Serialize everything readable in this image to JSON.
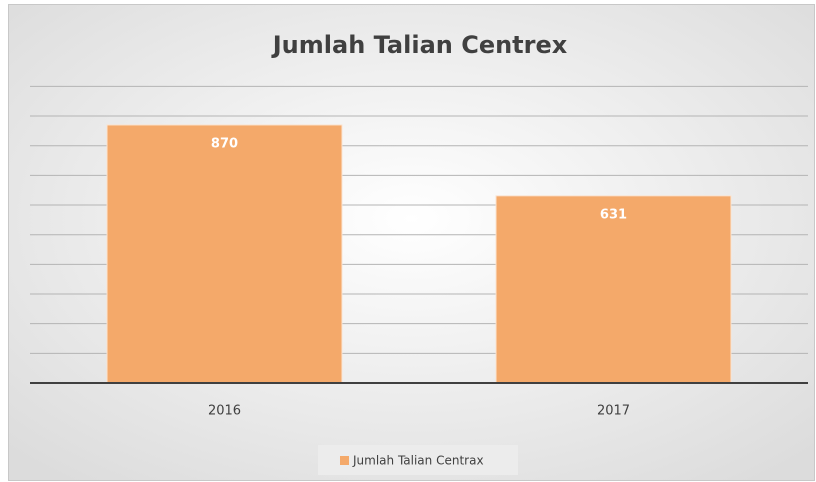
{
  "chart_data": {
    "type": "bar",
    "title": "Jumlah Talian Centrex",
    "categories": [
      "2016",
      "2017"
    ],
    "values": [
      870,
      631
    ],
    "color": "#f4a96a",
    "series_name": "Jumlah Talian Centrax",
    "ylim": [
      0,
      1000
    ],
    "yticks": [
      0,
      100,
      200,
      300,
      400,
      500,
      600,
      700,
      800,
      900,
      1000
    ],
    "grid": true
  }
}
